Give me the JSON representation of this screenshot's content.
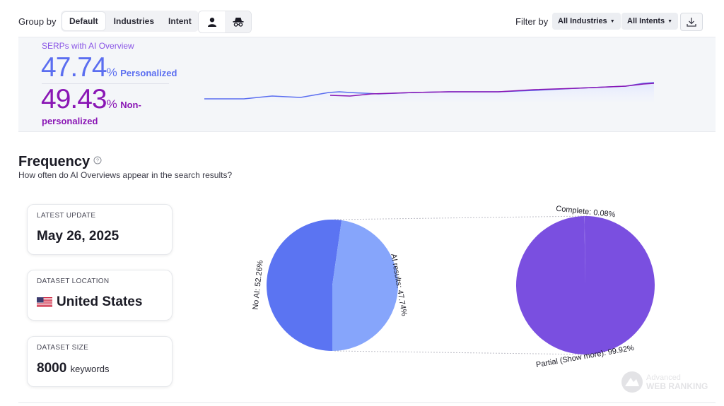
{
  "toolbar": {
    "group_by_label": "Group by",
    "group_options": [
      {
        "label": "Default",
        "active": true
      },
      {
        "label": "Industries",
        "active": false
      },
      {
        "label": "Intent",
        "active": false
      }
    ],
    "view_icons": [
      "person-icon",
      "incognito-icon"
    ],
    "filter_by_label": "Filter by",
    "industries_select": "All Industries",
    "intents_select": "All Intents",
    "download_icon": "download-icon"
  },
  "summary": {
    "title": "SERPs with AI Overview",
    "personalized_value": "47.74",
    "personalized_pct": "%",
    "personalized_label": "Personalized",
    "nonpersonalized_value": "49.43",
    "nonpersonalized_pct": "%",
    "nonpersonalized_label_1": "Non-",
    "nonpersonalized_label_2": "personalized",
    "colors": {
      "personalized": "#5b6ef0",
      "nonpersonalized": "#8a17b5"
    }
  },
  "frequency": {
    "title": "Frequency",
    "help_icon": "question-circle-icon",
    "subtitle": "How often do AI Overviews appear in the search results?"
  },
  "cards": {
    "latest_update_title": "LATEST UPDATE",
    "latest_update_value": "May 26, 2025",
    "location_title": "DATASET LOCATION",
    "location_value": "United States",
    "location_flag": "us-flag-icon",
    "size_title": "DATASET SIZE",
    "size_value": "8000",
    "size_unit": "keywords"
  },
  "chart_data": [
    {
      "type": "pie",
      "labels": [
        "No AI",
        "AI results"
      ],
      "values": [
        52.26,
        47.74
      ],
      "slice_labels": [
        "No AI: 52.26%",
        "AI results: 47.74%"
      ],
      "colors": [
        "#5b74f2",
        "#86a5fb"
      ]
    },
    {
      "type": "pie",
      "labels": [
        "Complete",
        "Partial (Show more)"
      ],
      "values": [
        0.08,
        99.92
      ],
      "slice_labels": [
        "Complete: 0.08%",
        "Partial (Show more): 99.92%"
      ],
      "colors": [
        "#7a4fe0",
        "#7a4fe0"
      ]
    }
  ],
  "watermark": {
    "line1": "Advanced",
    "line2": "WEB RANKING"
  }
}
